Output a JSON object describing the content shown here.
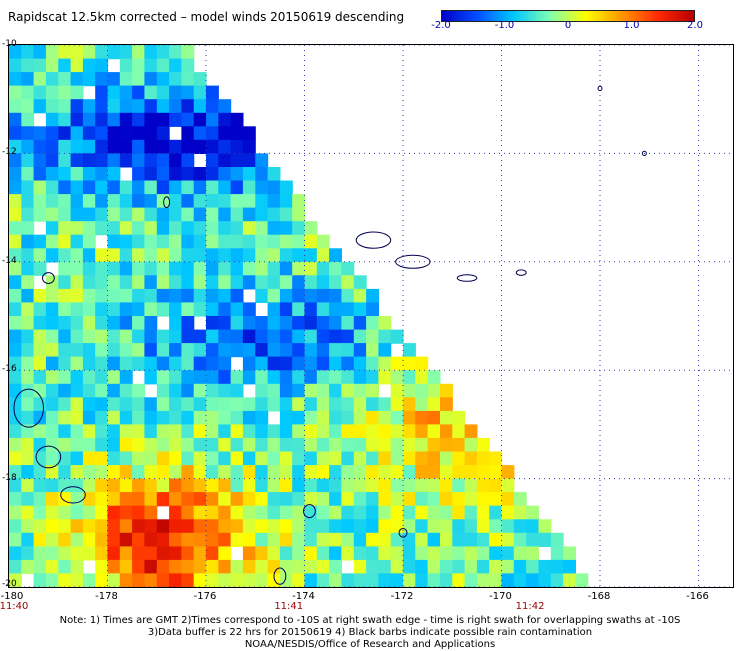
{
  "header": {
    "title": "Rapidscat 12.5km corrected – model winds 20150619 descending"
  },
  "colorbar": {
    "ticks": [
      "-2.0",
      "-1.0",
      "0",
      "1.0",
      "2.0"
    ],
    "tick_values": [
      -2.0,
      -1.0,
      0.0,
      1.0,
      2.0
    ],
    "range": [
      -2.0,
      2.0
    ],
    "colors": [
      "#0000c8",
      "#0050ff",
      "#00c8ff",
      "#80ffb0",
      "#ffff00",
      "#ff9600",
      "#ff2800",
      "#b40000"
    ]
  },
  "axes": {
    "x_ticks": [
      "-180",
      "-178",
      "-176",
      "-174",
      "-172",
      "-170",
      "-168",
      "-166"
    ],
    "x_values": [
      -180,
      -178,
      -176,
      -174,
      -172,
      -170,
      -168,
      -166
    ],
    "y_ticks": [
      "-10",
      "-12",
      "-14",
      "-16",
      "-18",
      "-20"
    ],
    "y_values": [
      -10,
      -12,
      -14,
      -16,
      -18,
      -20
    ],
    "x_range": [
      -180,
      -165.3
    ],
    "y_range": [
      -20,
      -10
    ]
  },
  "times": [
    {
      "label": "11:40",
      "lon": -180
    },
    {
      "label": "11:41",
      "lon": -174.3
    },
    {
      "label": "11:42",
      "lon": -169.4
    }
  ],
  "notes": {
    "line1": "Note: 1) Times are GMT 2)Times correspond to -10S at right swath edge - time is right swath for overlapping swaths at -10S",
    "line2": "3)Data buffer is 22 hrs for 20150619 4) Black barbs indicate possible rain contamination",
    "line3": "NOAA/NESDIS/Office of Research and Applications"
  }
}
